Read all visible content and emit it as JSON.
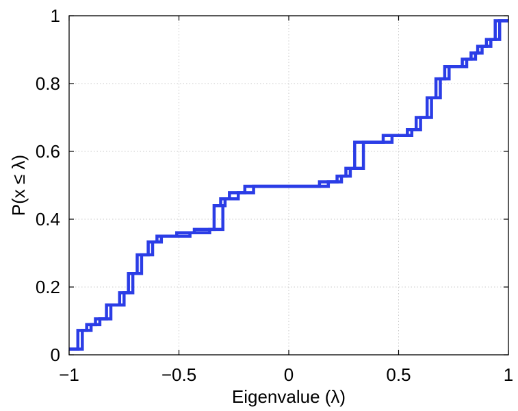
{
  "chart_data": {
    "type": "line",
    "subtype": "empirical-cdf-step",
    "title": "",
    "xlabel": "Eigenvalue (λ)",
    "ylabel": "P(x ≤ λ)",
    "xlim": [
      -1,
      1
    ],
    "ylim": [
      0,
      1
    ],
    "xticks": [
      -1,
      -0.5,
      0,
      0.5,
      1
    ],
    "yticks": [
      0,
      0.2,
      0.4,
      0.6,
      0.8,
      1
    ],
    "xtick_labels": [
      "−1",
      "−0.5",
      "0",
      "0.5",
      "1"
    ],
    "ytick_labels": [
      "0",
      "0.2",
      "0.4",
      "0.6",
      "0.8",
      "1"
    ],
    "grid": true,
    "line_color": "#2b3de6",
    "series": [
      {
        "values": [
          [
            -1,
            0.017
          ],
          [
            -0.94,
            0.017
          ],
          [
            -0.94,
            0.072
          ],
          [
            -0.9,
            0.072
          ],
          [
            -0.9,
            0.089
          ],
          [
            -0.86,
            0.089
          ],
          [
            -0.86,
            0.106
          ],
          [
            -0.83,
            0.106
          ],
          [
            -0.83,
            0.147
          ],
          [
            -0.77,
            0.147
          ],
          [
            -0.77,
            0.183
          ],
          [
            -0.73,
            0.183
          ],
          [
            -0.73,
            0.24
          ],
          [
            -0.69,
            0.24
          ],
          [
            -0.69,
            0.295
          ],
          [
            -0.64,
            0.295
          ],
          [
            -0.64,
            0.333
          ],
          [
            -0.6,
            0.333
          ],
          [
            -0.6,
            0.35
          ],
          [
            -0.51,
            0.35
          ],
          [
            -0.51,
            0.36
          ],
          [
            -0.43,
            0.36
          ],
          [
            -0.43,
            0.37
          ],
          [
            -0.34,
            0.37
          ],
          [
            -0.34,
            0.44
          ],
          [
            -0.31,
            0.44
          ],
          [
            -0.31,
            0.46
          ],
          [
            -0.27,
            0.46
          ],
          [
            -0.27,
            0.478
          ],
          [
            -0.2,
            0.478
          ],
          [
            -0.2,
            0.497
          ],
          [
            0.14,
            0.497
          ],
          [
            0.14,
            0.51
          ],
          [
            0.22,
            0.51
          ],
          [
            0.22,
            0.527
          ],
          [
            0.26,
            0.527
          ],
          [
            0.26,
            0.55
          ],
          [
            0.3,
            0.55
          ],
          [
            0.3,
            0.627
          ],
          [
            0.43,
            0.627
          ],
          [
            0.43,
            0.647
          ],
          [
            0.54,
            0.647
          ],
          [
            0.54,
            0.664
          ],
          [
            0.58,
            0.664
          ],
          [
            0.58,
            0.7
          ],
          [
            0.63,
            0.7
          ],
          [
            0.63,
            0.758
          ],
          [
            0.67,
            0.758
          ],
          [
            0.67,
            0.814
          ],
          [
            0.71,
            0.814
          ],
          [
            0.71,
            0.85
          ],
          [
            0.79,
            0.85
          ],
          [
            0.79,
            0.872
          ],
          [
            0.83,
            0.872
          ],
          [
            0.83,
            0.89
          ],
          [
            0.86,
            0.89
          ],
          [
            0.86,
            0.91
          ],
          [
            0.9,
            0.91
          ],
          [
            0.9,
            0.93
          ],
          [
            0.94,
            0.93
          ],
          [
            0.94,
            0.985
          ],
          [
            1,
            0.985
          ]
        ]
      },
      {
        "values": [
          [
            -1,
            0.017
          ],
          [
            -0.96,
            0.017
          ],
          [
            -0.96,
            0.072
          ],
          [
            -0.92,
            0.072
          ],
          [
            -0.92,
            0.089
          ],
          [
            -0.88,
            0.089
          ],
          [
            -0.88,
            0.106
          ],
          [
            -0.81,
            0.106
          ],
          [
            -0.81,
            0.147
          ],
          [
            -0.75,
            0.147
          ],
          [
            -0.75,
            0.183
          ],
          [
            -0.71,
            0.183
          ],
          [
            -0.71,
            0.24
          ],
          [
            -0.67,
            0.24
          ],
          [
            -0.67,
            0.295
          ],
          [
            -0.62,
            0.295
          ],
          [
            -0.62,
            0.333
          ],
          [
            -0.58,
            0.333
          ],
          [
            -0.58,
            0.35
          ],
          [
            -0.45,
            0.35
          ],
          [
            -0.45,
            0.36
          ],
          [
            -0.36,
            0.36
          ],
          [
            -0.36,
            0.37
          ],
          [
            -0.3,
            0.37
          ],
          [
            -0.3,
            0.44
          ],
          [
            -0.29,
            0.44
          ],
          [
            -0.29,
            0.46
          ],
          [
            -0.23,
            0.46
          ],
          [
            -0.23,
            0.478
          ],
          [
            -0.16,
            0.478
          ],
          [
            -0.16,
            0.497
          ],
          [
            0.18,
            0.497
          ],
          [
            0.18,
            0.51
          ],
          [
            0.24,
            0.51
          ],
          [
            0.24,
            0.527
          ],
          [
            0.28,
            0.527
          ],
          [
            0.28,
            0.55
          ],
          [
            0.34,
            0.55
          ],
          [
            0.34,
            0.627
          ],
          [
            0.47,
            0.627
          ],
          [
            0.47,
            0.647
          ],
          [
            0.56,
            0.647
          ],
          [
            0.56,
            0.664
          ],
          [
            0.6,
            0.664
          ],
          [
            0.6,
            0.7
          ],
          [
            0.65,
            0.7
          ],
          [
            0.65,
            0.758
          ],
          [
            0.69,
            0.758
          ],
          [
            0.69,
            0.814
          ],
          [
            0.73,
            0.814
          ],
          [
            0.73,
            0.85
          ],
          [
            0.81,
            0.85
          ],
          [
            0.81,
            0.872
          ],
          [
            0.85,
            0.872
          ],
          [
            0.85,
            0.89
          ],
          [
            0.88,
            0.89
          ],
          [
            0.88,
            0.91
          ],
          [
            0.92,
            0.91
          ],
          [
            0.92,
            0.93
          ],
          [
            0.96,
            0.93
          ],
          [
            0.96,
            0.985
          ],
          [
            1,
            0.985
          ]
        ]
      }
    ]
  }
}
